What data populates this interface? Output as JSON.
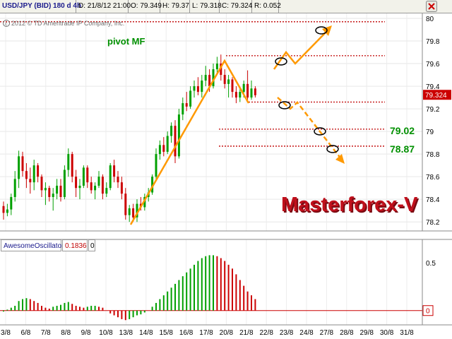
{
  "header": {
    "symbol": "USD/JPY (BID) 180 d 4h",
    "date": "D: 21/8/12 21:00",
    "open": "O: 79.349",
    "high": "H: 79.37",
    "low": "L: 79.318",
    "close": "C: 79.324",
    "range": "R: 0.052"
  },
  "copyright": "2012 © TD Ameritrade IP Company, Inc.",
  "annotations": {
    "pivot_label": "pivot MF",
    "brand": "Masterforex-V",
    "level_1": "79.02",
    "level_2": "78.87"
  },
  "osc": {
    "name": "AwesomeOscillator",
    "value": "0.1836",
    "param": "0"
  },
  "colors": {
    "up": "#00a000",
    "down": "#cc0000",
    "accent": "#ff9900",
    "level_line": "#c00000",
    "brand": "#b01020",
    "label_green": "#009000"
  },
  "chart_data": [
    {
      "type": "candlestick",
      "x": "time (4h bars)",
      "x_ticks": [
        "3/8",
        "6/8",
        "7/8",
        "8/8",
        "9/8",
        "10/8",
        "13/8",
        "14/8",
        "15/8",
        "16/8",
        "17/8",
        "20/8",
        "21/8",
        "22/8",
        "23/8",
        "24/8",
        "27/8",
        "28/8",
        "29/8",
        "30/8",
        "31/8"
      ],
      "y_ticks": [
        78.2,
        78.4,
        78.6,
        78.8,
        79,
        79.2,
        79.4,
        79.6,
        79.8,
        80
      ],
      "ylim": [
        78.12,
        80.05
      ],
      "last_price": "79.324",
      "ohlc": [
        [
          78.34,
          78.38,
          78.22,
          78.28
        ],
        [
          78.28,
          78.36,
          78.25,
          78.31
        ],
        [
          78.31,
          78.45,
          78.26,
          78.42
        ],
        [
          78.42,
          78.65,
          78.38,
          78.58
        ],
        [
          78.58,
          78.83,
          78.5,
          78.78
        ],
        [
          78.78,
          78.82,
          78.6,
          78.65
        ],
        [
          78.65,
          78.72,
          78.5,
          78.58
        ],
        [
          78.58,
          78.68,
          78.45,
          78.55
        ],
        [
          78.55,
          78.75,
          78.48,
          78.7
        ],
        [
          78.7,
          78.72,
          78.55,
          78.6
        ],
        [
          78.6,
          78.62,
          78.42,
          78.48
        ],
        [
          78.48,
          78.55,
          78.35,
          78.5
        ],
        [
          78.5,
          78.52,
          78.38,
          78.42
        ],
        [
          78.42,
          78.5,
          78.3,
          78.45
        ],
        [
          78.45,
          78.58,
          78.4,
          78.52
        ],
        [
          78.52,
          78.58,
          78.38,
          78.42
        ],
        [
          78.42,
          78.7,
          78.4,
          78.66
        ],
        [
          78.66,
          78.85,
          78.6,
          78.8
        ],
        [
          78.8,
          78.82,
          78.55,
          78.6
        ],
        [
          78.6,
          78.66,
          78.42,
          78.5
        ],
        [
          78.5,
          78.58,
          78.4,
          78.52
        ],
        [
          78.52,
          78.7,
          78.5,
          78.68
        ],
        [
          78.68,
          78.7,
          78.5,
          78.55
        ],
        [
          78.55,
          78.6,
          78.45,
          78.48
        ],
        [
          78.48,
          78.55,
          78.4,
          78.52
        ],
        [
          78.52,
          78.65,
          78.5,
          78.6
        ],
        [
          78.6,
          78.62,
          78.4,
          78.45
        ],
        [
          78.45,
          78.55,
          78.42,
          78.5
        ],
        [
          78.5,
          78.72,
          78.48,
          78.7
        ],
        [
          78.7,
          78.75,
          78.55,
          78.6
        ],
        [
          78.6,
          78.65,
          78.5,
          78.55
        ],
        [
          78.55,
          78.6,
          78.4,
          78.45
        ],
        [
          78.45,
          78.5,
          78.22,
          78.26
        ],
        [
          78.26,
          78.35,
          78.2,
          78.32
        ],
        [
          78.32,
          78.36,
          78.2,
          78.24
        ],
        [
          78.24,
          78.4,
          78.2,
          78.36
        ],
        [
          78.36,
          78.42,
          78.3,
          78.33
        ],
        [
          78.33,
          78.45,
          78.3,
          78.42
        ],
        [
          78.42,
          78.5,
          78.38,
          78.46
        ],
        [
          78.46,
          78.62,
          78.44,
          78.6
        ],
        [
          78.6,
          78.85,
          78.58,
          78.8
        ],
        [
          78.8,
          78.92,
          78.75,
          78.88
        ],
        [
          78.88,
          78.95,
          78.78,
          78.82
        ],
        [
          78.82,
          79.0,
          78.8,
          78.96
        ],
        [
          78.96,
          79.08,
          78.9,
          79.05
        ],
        [
          79.05,
          79.1,
          78.72,
          78.78
        ],
        [
          78.78,
          79.2,
          78.76,
          79.15
        ],
        [
          79.15,
          79.3,
          79.1,
          79.25
        ],
        [
          79.25,
          79.35,
          79.18,
          79.22
        ],
        [
          79.22,
          79.4,
          79.2,
          79.36
        ],
        [
          79.36,
          79.45,
          79.3,
          79.4
        ],
        [
          79.4,
          79.48,
          79.32,
          79.35
        ],
        [
          79.35,
          79.5,
          79.3,
          79.45
        ],
        [
          79.45,
          79.58,
          79.4,
          79.5
        ],
        [
          79.5,
          79.55,
          79.35,
          79.4
        ],
        [
          79.4,
          79.6,
          79.38,
          79.55
        ],
        [
          79.55,
          79.66,
          79.5,
          79.6
        ],
        [
          79.6,
          79.68,
          79.45,
          79.5
        ],
        [
          79.5,
          79.55,
          79.38,
          79.42
        ],
        [
          79.42,
          79.5,
          79.3,
          79.46
        ],
        [
          79.46,
          79.48,
          79.3,
          79.35
        ],
        [
          79.35,
          79.4,
          79.25,
          79.3
        ],
        [
          79.3,
          79.38,
          79.26,
          79.35
        ],
        [
          79.35,
          79.45,
          79.3,
          79.42
        ],
        [
          79.42,
          79.54,
          79.28,
          79.3
        ],
        [
          79.3,
          79.45,
          79.28,
          79.38
        ],
        [
          79.38,
          79.4,
          79.3,
          79.32
        ]
      ]
    },
    {
      "type": "bar",
      "title": "AwesomeOscillator",
      "y_ticks": [
        0.5,
        0
      ],
      "ylim": [
        -0.15,
        0.62
      ],
      "values": [
        -0.01,
        0.01,
        0.03,
        0.05,
        0.1,
        0.12,
        0.13,
        0.12,
        0.1,
        0.08,
        0.05,
        0.03,
        0.02,
        0.04,
        0.05,
        0.06,
        0.08,
        0.09,
        0.07,
        0.05,
        0.04,
        0.03,
        0.04,
        0.05,
        0.05,
        0.04,
        0.03,
        0.0,
        -0.03,
        -0.05,
        -0.07,
        -0.09,
        -0.1,
        -0.09,
        -0.07,
        -0.05,
        -0.04,
        -0.02,
        0.0,
        0.04,
        0.08,
        0.12,
        0.16,
        0.2,
        0.24,
        0.28,
        0.32,
        0.36,
        0.4,
        0.44,
        0.48,
        0.52,
        0.55,
        0.57,
        0.58,
        0.58,
        0.57,
        0.55,
        0.52,
        0.48,
        0.44,
        0.38,
        0.32,
        0.26,
        0.2,
        0.16,
        0.12
      ]
    }
  ]
}
